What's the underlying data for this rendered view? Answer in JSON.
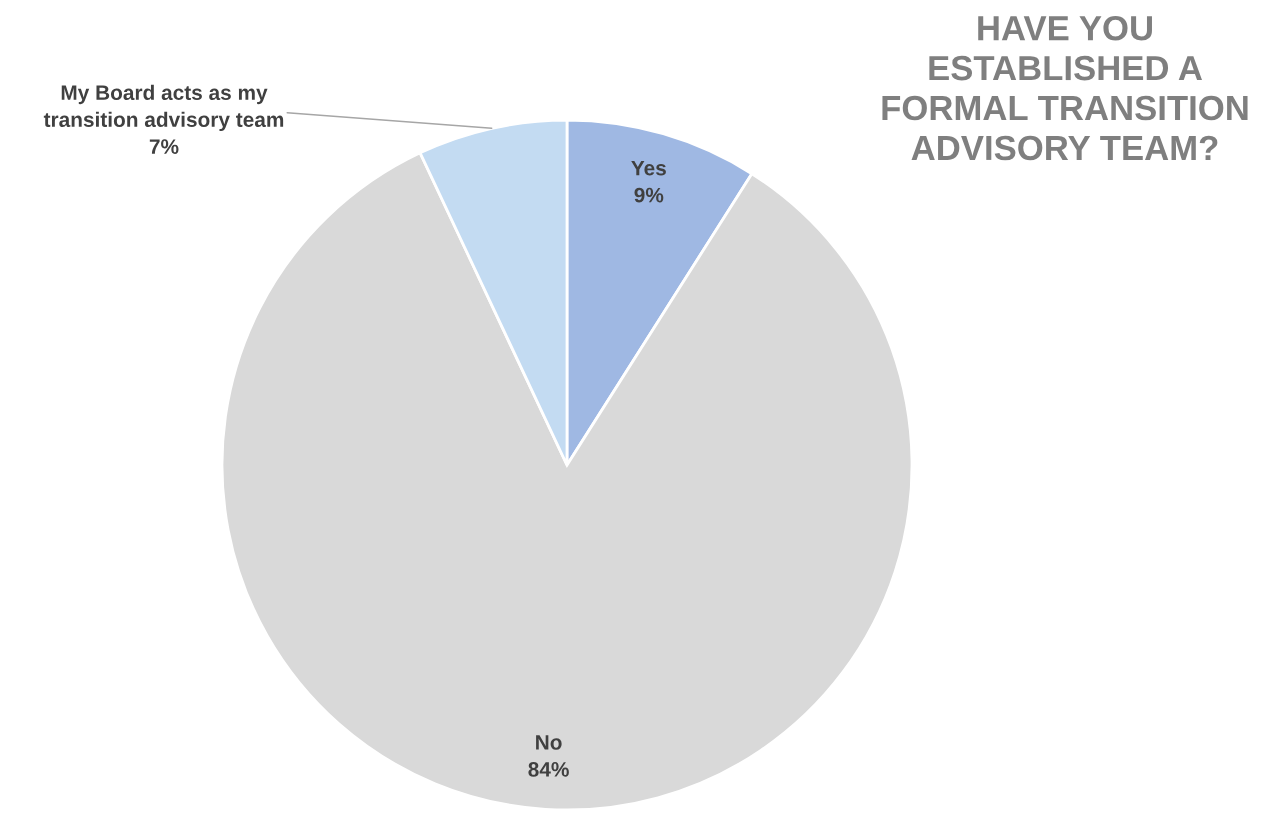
{
  "chart_data": {
    "type": "pie",
    "title": "HAVE YOU\nESTABLISHED A\nFORMAL TRANSITION\nADVISORY TEAM?",
    "categories": [
      "Yes",
      "No",
      "My Board acts as my\ntransition advisory team"
    ],
    "values": [
      9,
      84,
      7
    ],
    "value_labels": [
      "9%",
      "84%",
      "7%"
    ],
    "colors": [
      "#9fb8e3",
      "#d9d9d9",
      "#c3dbf2"
    ]
  }
}
